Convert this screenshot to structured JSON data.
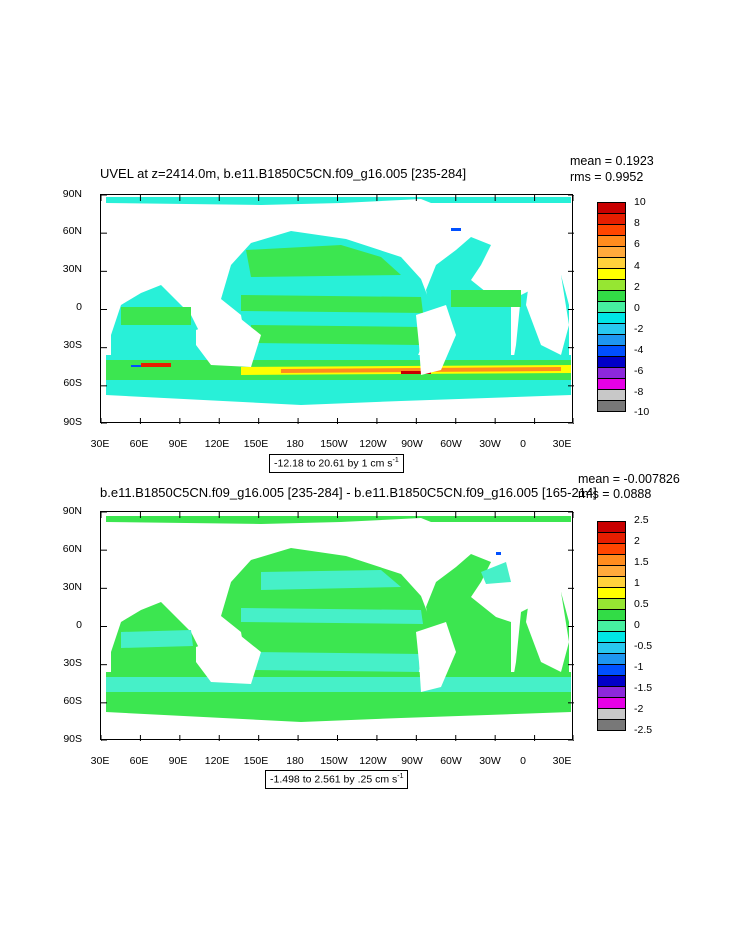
{
  "chart_data": [
    {
      "type": "heatmap",
      "title": "UVEL at z=2414.0m, b.e11.B1850C5CN.f09_g16.005 [235-284]",
      "stats": {
        "mean": "mean = 0.1923",
        "rms": "rms = 0.9952"
      },
      "x_tick_labels": [
        "30E",
        "60E",
        "90E",
        "120E",
        "150E",
        "180",
        "150W",
        "120W",
        "90W",
        "60W",
        "30W",
        "0",
        "30E"
      ],
      "y_tick_labels": [
        "90N",
        "60N",
        "30N",
        "0",
        "30S",
        "60S",
        "90S"
      ],
      "range_label": "-12.18 to 20.61 by 1 cm s",
      "range_unit_exponent": "-1",
      "colorbar_labels": [
        "10",
        "8",
        "6",
        "4",
        "2",
        "0",
        "-2",
        "-4",
        "-6",
        "-8",
        "-10"
      ],
      "colorbar_colors": [
        "#c80000",
        "#e61e00",
        "#ff4600",
        "#ff8c1e",
        "#ffaa3c",
        "#ffd23c",
        "#ffff00",
        "#96e632",
        "#32dc46",
        "#46f0a0",
        "#00e6e6",
        "#28c8f0",
        "#1e96f0",
        "#0050ff",
        "#0000c8",
        "#8c28dc",
        "#e600e6",
        "#c8c8c8",
        "#787878"
      ]
    },
    {
      "type": "heatmap",
      "title": "b.e11.B1850C5CN.f09_g16.005 [235-284] - b.e11.B1850C5CN.f09_g16.005 [165-214]",
      "stats": {
        "mean": "mean = -0.007826",
        "rms": "rms = 0.0888"
      },
      "x_tick_labels": [
        "30E",
        "60E",
        "90E",
        "120E",
        "150E",
        "180",
        "150W",
        "120W",
        "90W",
        "60W",
        "30W",
        "0",
        "30E"
      ],
      "y_tick_labels": [
        "90N",
        "60N",
        "30N",
        "0",
        "30S",
        "60S",
        "90S"
      ],
      "range_label": "-1.498 to 2.561 by .25 cm s",
      "range_unit_exponent": "-1",
      "colorbar_labels": [
        "2.5",
        "2",
        "1.5",
        "1",
        "0.5",
        "0",
        "-0.5",
        "-1",
        "-1.5",
        "-2",
        "-2.5"
      ],
      "colorbar_colors": [
        "#c80000",
        "#e61e00",
        "#ff4600",
        "#ff8c1e",
        "#ffaa3c",
        "#ffd23c",
        "#ffff00",
        "#96e632",
        "#32dc46",
        "#46f0a0",
        "#00e6e6",
        "#28c8f0",
        "#1e96f0",
        "#0050ff",
        "#0000c8",
        "#8c28dc",
        "#e600e6",
        "#c8c8c8",
        "#787878"
      ]
    }
  ],
  "colors": {
    "ocean_green": "#3ce650",
    "ocean_cyan": "#28f0d8",
    "ocean_cyan2": "#46f0c8",
    "land": "#ffffff"
  }
}
